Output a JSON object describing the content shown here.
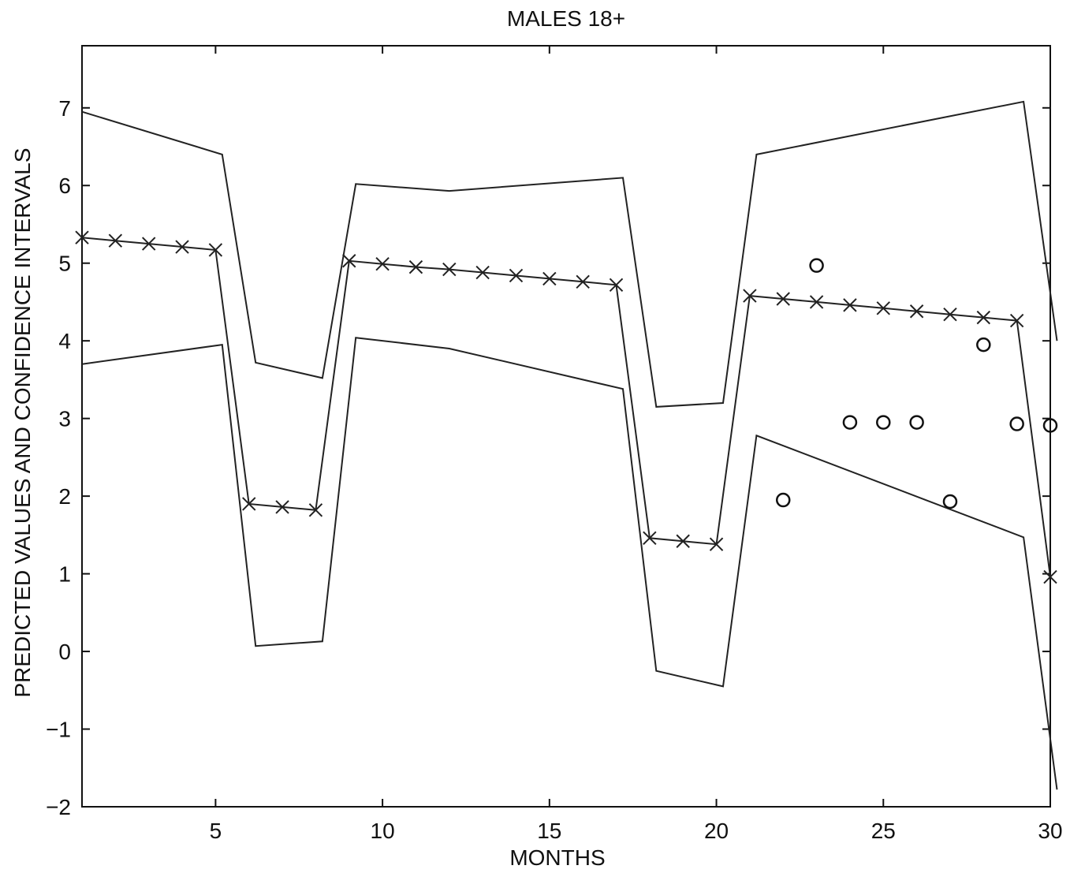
{
  "chart_data": {
    "type": "line",
    "title": "MALES 18+",
    "xlabel": "MONTHS",
    "ylabel": "PREDICTED VALUES AND CONFIDENCE INTERVALS",
    "xlim": [
      1,
      30
    ],
    "ylim": [
      -2,
      7.8
    ],
    "xticks": [
      5,
      10,
      15,
      20,
      25,
      30
    ],
    "yticks": [
      -2,
      -1,
      0,
      1,
      2,
      3,
      4,
      5,
      6,
      7
    ],
    "grid": false,
    "series": [
      {
        "role": "upper-ci",
        "marker": "none",
        "x": [
          1,
          5.2,
          6.2,
          8.2,
          9.2,
          12,
          17.2,
          18.2,
          20.2,
          21.2,
          29.2,
          30.2
        ],
        "y": [
          6.95,
          6.4,
          3.72,
          3.52,
          6.02,
          5.93,
          6.1,
          3.15,
          3.2,
          6.4,
          7.08,
          4.0
        ]
      },
      {
        "role": "predicted",
        "marker": "x",
        "x": [
          1,
          2,
          3,
          4,
          5,
          6,
          7,
          8,
          9,
          10,
          11,
          12,
          13,
          14,
          15,
          16,
          17,
          18,
          19,
          20,
          21,
          22,
          23,
          24,
          25,
          26,
          27,
          28,
          29,
          30
        ],
        "y": [
          5.33,
          5.29,
          5.25,
          5.21,
          5.17,
          1.9,
          1.86,
          1.82,
          5.03,
          4.99,
          4.95,
          4.92,
          4.88,
          4.84,
          4.8,
          4.76,
          4.72,
          1.46,
          1.42,
          1.38,
          4.58,
          4.54,
          4.5,
          4.46,
          4.42,
          4.38,
          4.34,
          4.3,
          4.26,
          0.96
        ]
      },
      {
        "role": "lower-ci",
        "marker": "none",
        "x": [
          1,
          5.2,
          6.2,
          8.2,
          9.2,
          12,
          17.2,
          18.2,
          20.2,
          21.2,
          29.2,
          30.2
        ],
        "y": [
          3.7,
          3.95,
          0.07,
          0.13,
          4.04,
          3.9,
          3.38,
          -0.25,
          -0.45,
          2.78,
          1.47,
          -1.78
        ]
      },
      {
        "role": "observed",
        "marker": "o",
        "x": [
          22,
          23,
          24,
          25,
          26,
          27,
          28,
          29,
          30
        ],
        "y": [
          1.95,
          4.97,
          2.95,
          2.95,
          2.95,
          1.93,
          3.95,
          2.93,
          2.91
        ]
      }
    ]
  }
}
